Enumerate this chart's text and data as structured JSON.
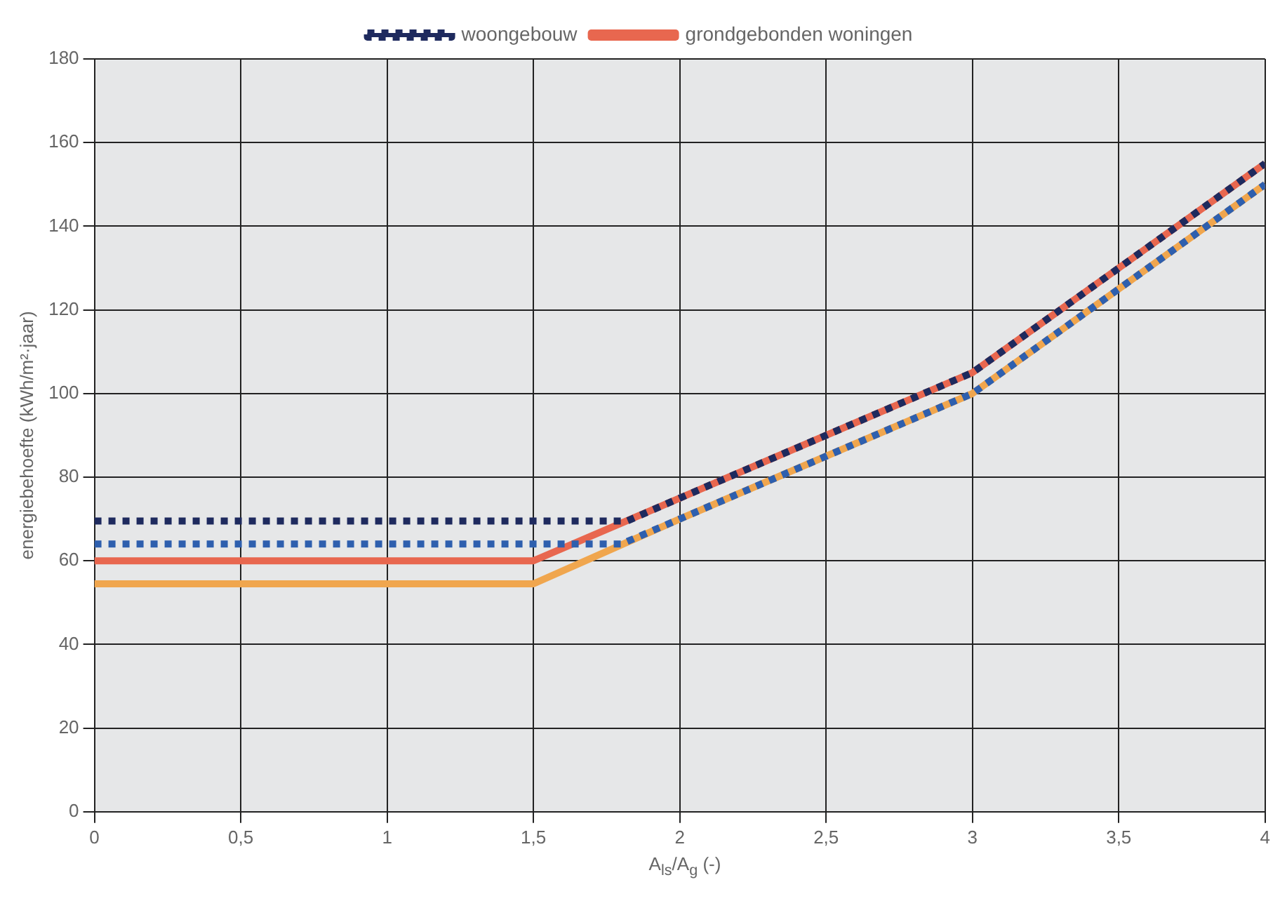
{
  "chart_data": {
    "type": "line",
    "xlabel": "A$_{ls}$/A$_{g}$ (-)",
    "ylabel": "energiebehoefte (kWh/m²·jaar)",
    "xlim": [
      0,
      4
    ],
    "xticks": [
      0,
      {
        "value": 0.5,
        "label": "0,5"
      },
      1,
      {
        "value": 1.5,
        "label": "1,5"
      },
      2,
      {
        "value": 2.5,
        "label": "2,5"
      },
      3,
      {
        "value": 3.5,
        "label": "3,5"
      },
      4
    ],
    "ylim": [
      0,
      180
    ],
    "yticks": [
      0,
      20,
      40,
      60,
      80,
      100,
      120,
      140,
      160,
      180
    ],
    "grid": true,
    "legend": "top",
    "marker": "none",
    "series": [
      {
        "name": "woongebouw",
        "color": "#1e2a5e",
        "line_style": "dotted",
        "x": [
          0,
          1.82,
          2,
          2.5,
          3,
          3.5,
          4
        ],
        "values": [
          69.5,
          69.5,
          75,
          90,
          105,
          130,
          155
        ]
      },
      {
        "color": "#2e5fae",
        "line_style": "dotted",
        "x": [
          0,
          1.8,
          2,
          2.5,
          3,
          3.5,
          4
        ],
        "values": [
          64,
          64,
          70,
          85,
          100,
          125,
          150
        ]
      },
      {
        "name": "grondgebonden woningen",
        "color": "#e8674f",
        "line_style": "solid",
        "x": [
          0,
          1.5,
          2,
          2.5,
          3,
          3.5,
          4
        ],
        "values": [
          60,
          60,
          75,
          90,
          105,
          130,
          155
        ]
      },
      {
        "color": "#f0a64e",
        "line_style": "solid",
        "x": [
          0,
          1.5,
          2,
          2.5,
          3,
          3.5,
          4
        ],
        "values": [
          54.5,
          54.5,
          70,
          85,
          100,
          125,
          150
        ]
      }
    ]
  }
}
